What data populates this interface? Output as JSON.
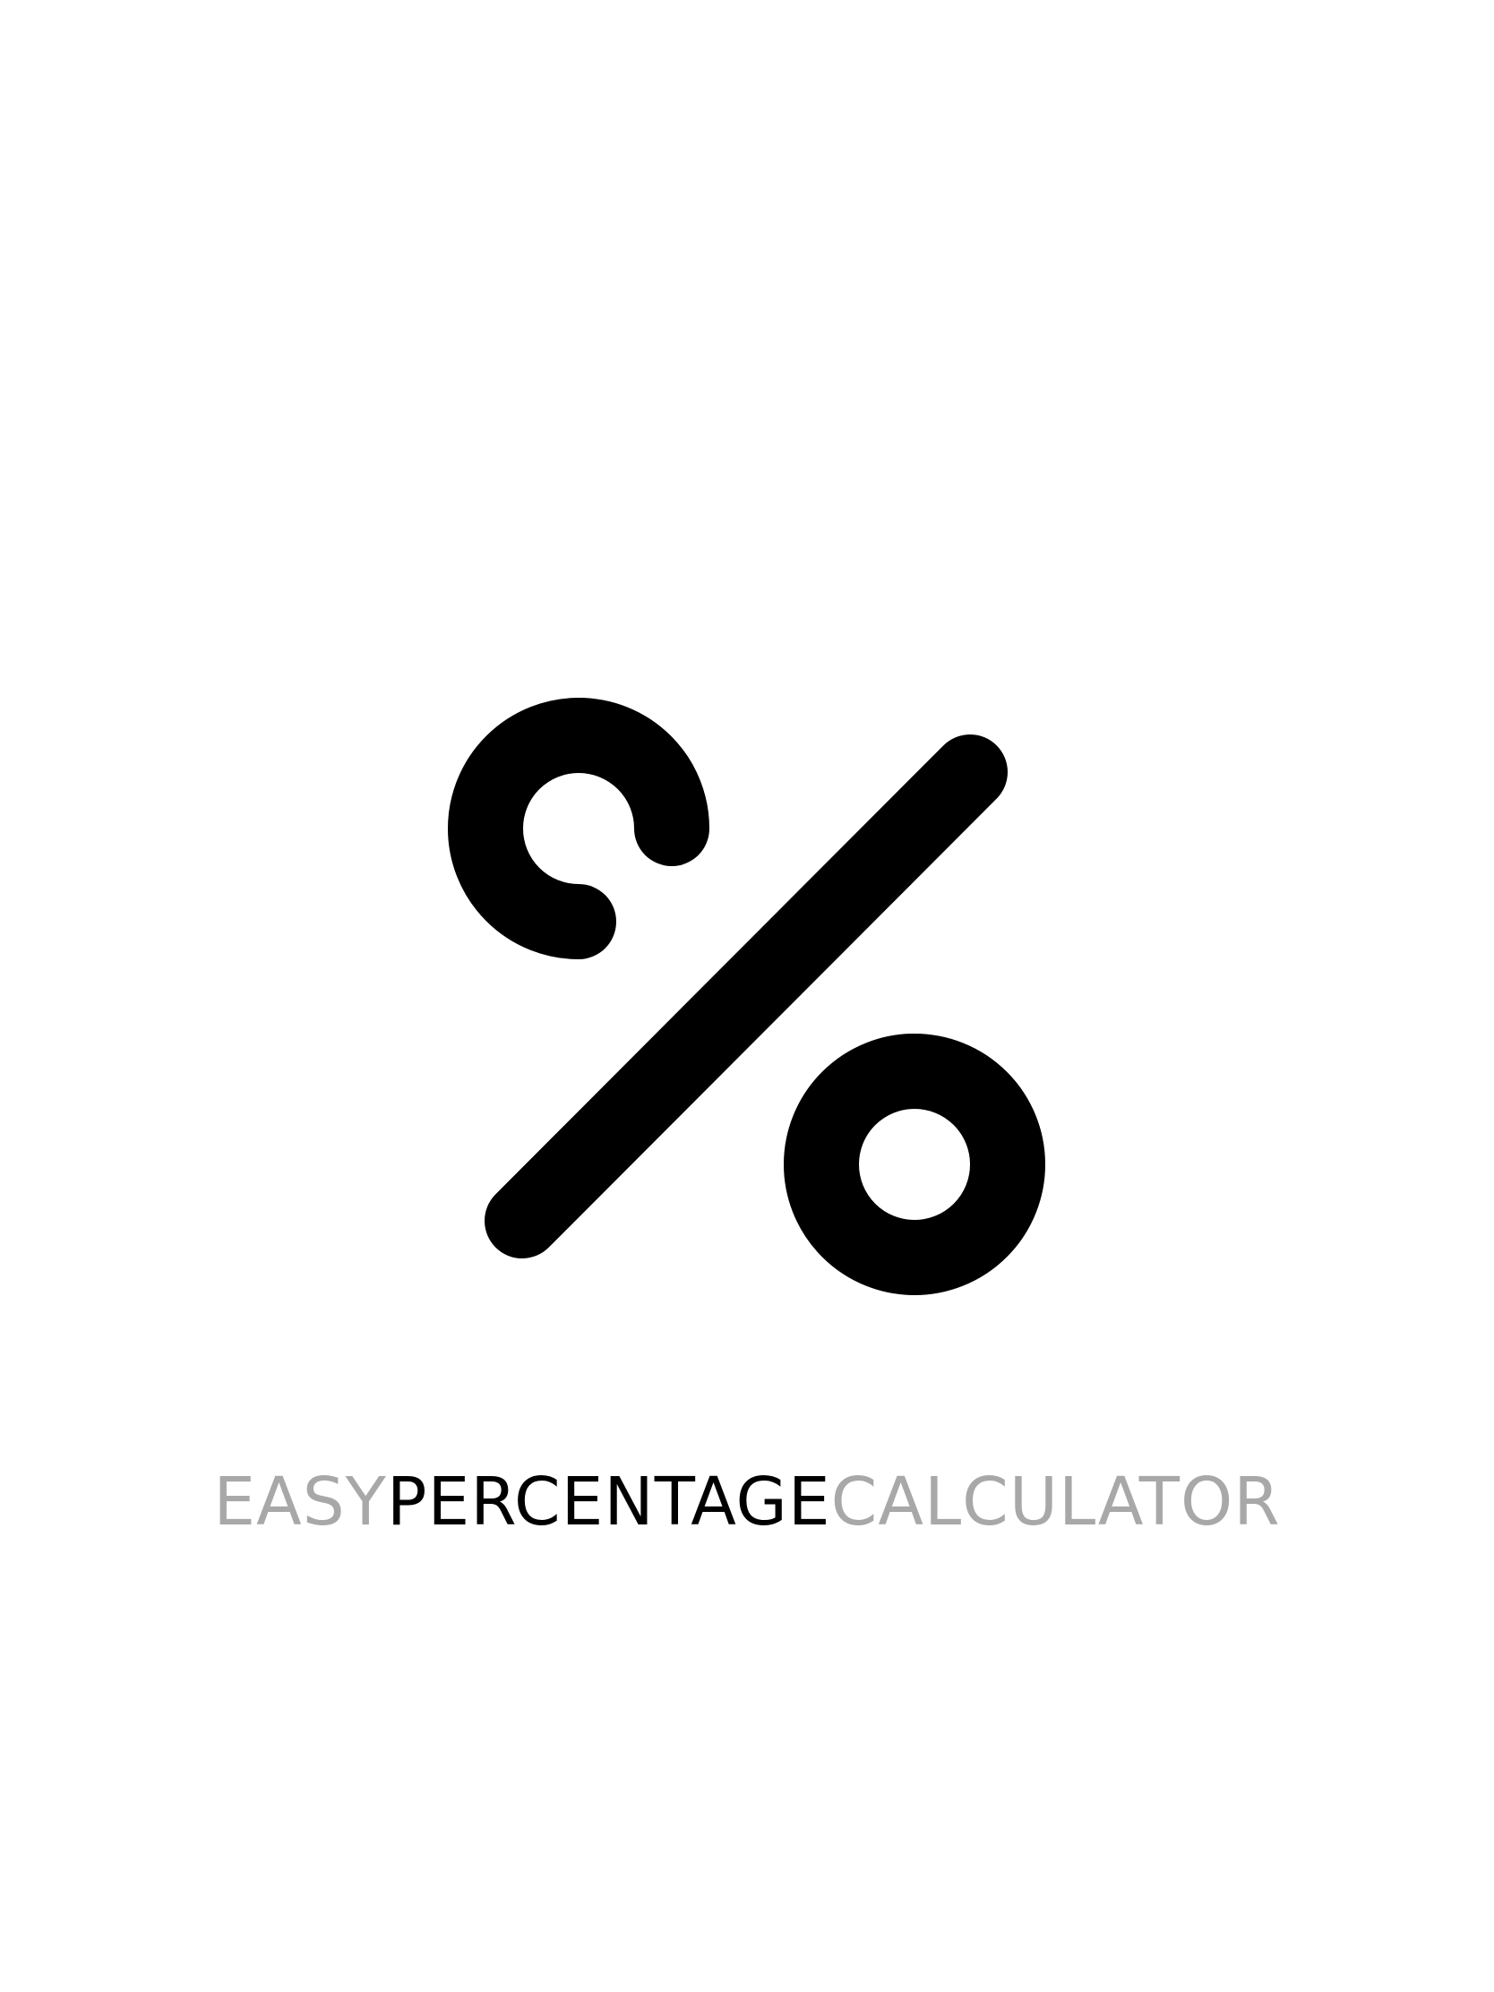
{
  "splash": {
    "logo_icon": "percent-icon",
    "wordmark": {
      "part1": "EASY",
      "part2": "PERCENTAGE",
      "part3": "CALCULATOR"
    }
  },
  "colors": {
    "background": "#ffffff",
    "logo": "#000000",
    "wordmark_primary": "#000000",
    "wordmark_secondary": "#a8a8a8"
  }
}
